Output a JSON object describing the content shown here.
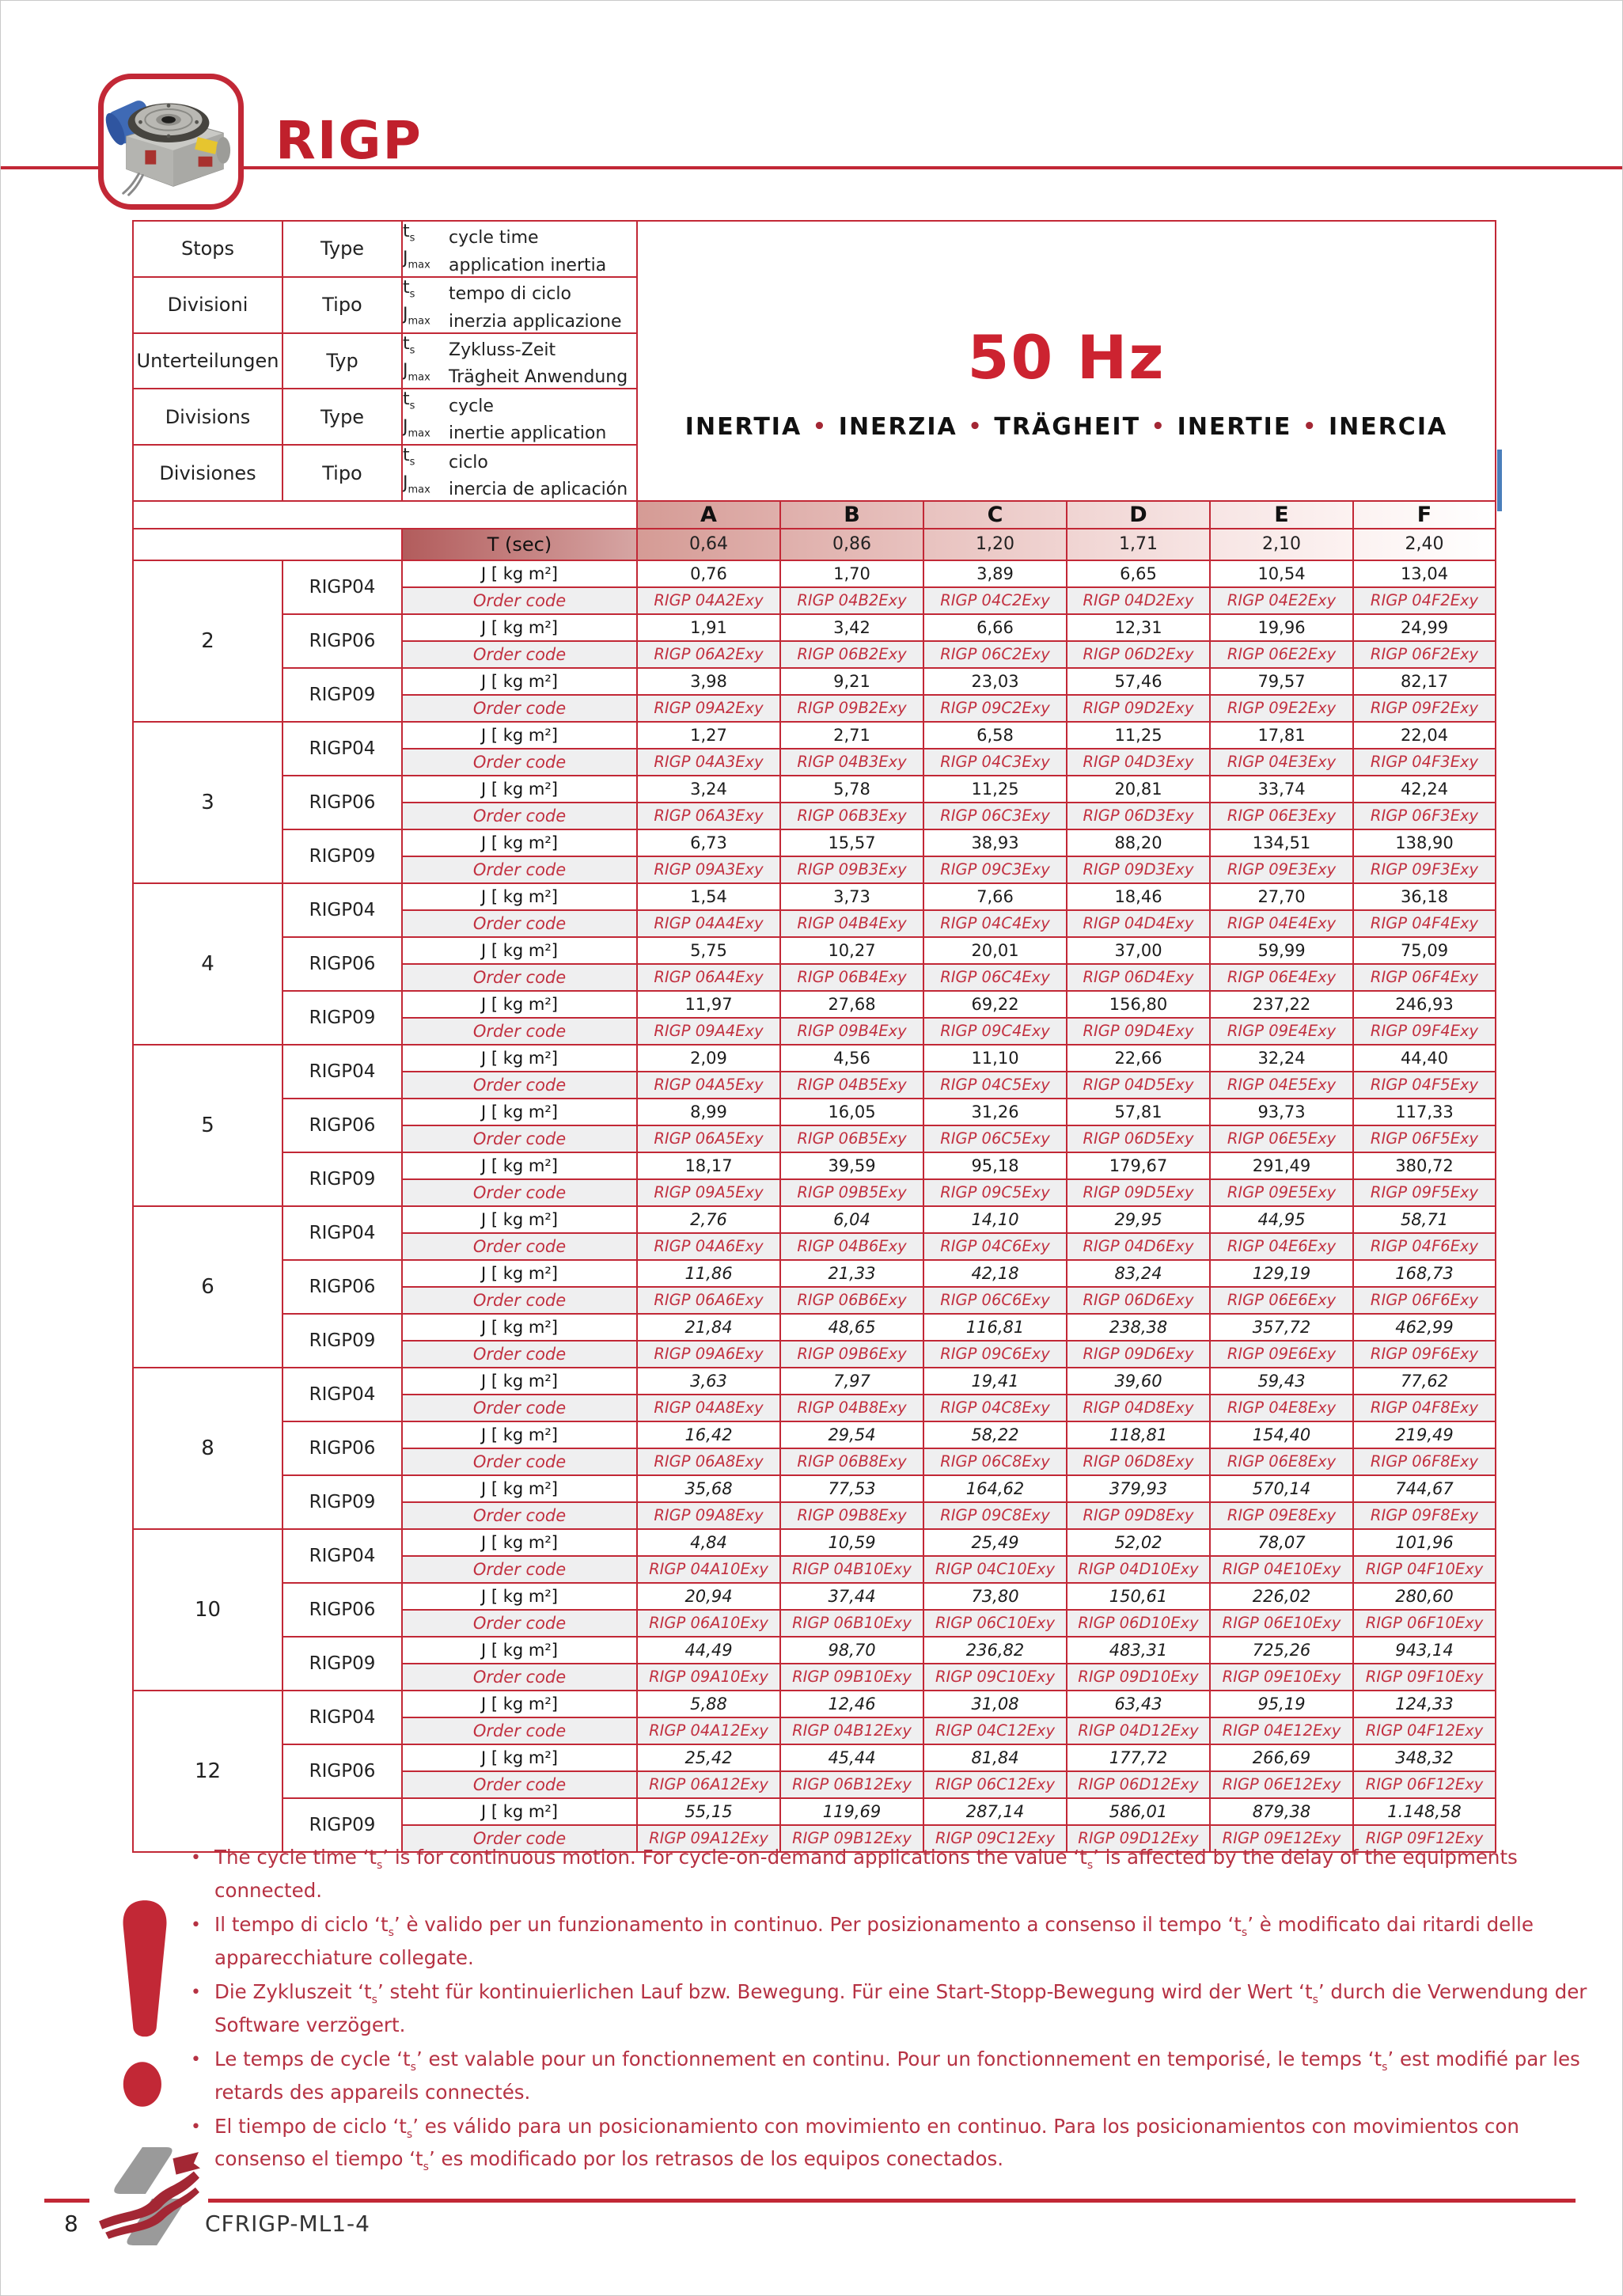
{
  "page": {
    "title": "RIGP",
    "page_number": "8",
    "doc_code": "CFRIGP-ML1-4"
  },
  "colors": {
    "accent_red": "#c22836",
    "title_red": "#c0202c",
    "hz_red": "#cc2330",
    "note_red": "#b63243",
    "order_code_red": "#c23040",
    "blue_edge": "#4a7ebb",
    "order_row_bg": "#efeff0",
    "header_gradient_start": "#d59b95",
    "t_label_gradient_start": "#b25c5c"
  },
  "header_table": {
    "rows": [
      {
        "col1": "Stops",
        "col2": "Type",
        "lines": [
          {
            "sym": "t",
            "sub": "s",
            "text": "cycle time"
          },
          {
            "sym": "J",
            "sub": "max",
            "text": "application inertia"
          }
        ]
      },
      {
        "col1": "Divisioni",
        "col2": "Tipo",
        "lines": [
          {
            "sym": "t",
            "sub": "s",
            "text": "tempo di ciclo"
          },
          {
            "sym": "J",
            "sub": "max",
            "text": "inerzia applicazione"
          }
        ]
      },
      {
        "col1": "Unterteilungen",
        "col2": "Typ",
        "lines": [
          {
            "sym": "t",
            "sub": "s",
            "text": "Zykluss-Zeit"
          },
          {
            "sym": "J",
            "sub": "max",
            "text": "Trägheit Anwendung"
          }
        ]
      },
      {
        "col1": "Divisions",
        "col2": "Type",
        "lines": [
          {
            "sym": "t",
            "sub": "s",
            "text": "cycle"
          },
          {
            "sym": "J",
            "sub": "max",
            "text": "inertie application"
          }
        ]
      },
      {
        "col1": "Divisiones",
        "col2": "Tipo",
        "lines": [
          {
            "sym": "t",
            "sub": "s",
            "text": "ciclo"
          },
          {
            "sym": "J",
            "sub": "max",
            "text": "inercia de aplicación"
          }
        ]
      }
    ]
  },
  "hz_block": {
    "title": "50 Hz",
    "words": [
      "INERTIA",
      "INERZIA",
      "TRÄGHEIT",
      "INERTIE",
      "INERCIA"
    ],
    "separator": "•"
  },
  "columns": [
    "A",
    "B",
    "C",
    "D",
    "E",
    "F"
  ],
  "t_row": {
    "label": "T (sec)",
    "values": [
      "0,64",
      "0,86",
      "1,20",
      "1,71",
      "2,10",
      "2,40"
    ]
  },
  "row_labels": {
    "j": "J [ kg m²]",
    "order": "Order code"
  },
  "groups": [
    {
      "stops": "2",
      "italic": false,
      "types": [
        {
          "name": "RIGP04",
          "j": [
            "0,76",
            "1,70",
            "3,89",
            "6,65",
            "10,54",
            "13,04"
          ],
          "codes": [
            "RIGP 04A2Exy",
            "RIGP 04B2Exy",
            "RIGP 04C2Exy",
            "RIGP 04D2Exy",
            "RIGP 04E2Exy",
            "RIGP 04F2Exy"
          ]
        },
        {
          "name": "RIGP06",
          "j": [
            "1,91",
            "3,42",
            "6,66",
            "12,31",
            "19,96",
            "24,99"
          ],
          "codes": [
            "RIGP 06A2Exy",
            "RIGP 06B2Exy",
            "RIGP 06C2Exy",
            "RIGP 06D2Exy",
            "RIGP 06E2Exy",
            "RIGP 06F2Exy"
          ]
        },
        {
          "name": "RIGP09",
          "j": [
            "3,98",
            "9,21",
            "23,03",
            "57,46",
            "79,57",
            "82,17"
          ],
          "codes": [
            "RIGP 09A2Exy",
            "RIGP 09B2Exy",
            "RIGP 09C2Exy",
            "RIGP 09D2Exy",
            "RIGP 09E2Exy",
            "RIGP 09F2Exy"
          ]
        }
      ]
    },
    {
      "stops": "3",
      "italic": false,
      "types": [
        {
          "name": "RIGP04",
          "j": [
            "1,27",
            "2,71",
            "6,58",
            "11,25",
            "17,81",
            "22,04"
          ],
          "codes": [
            "RIGP 04A3Exy",
            "RIGP 04B3Exy",
            "RIGP 04C3Exy",
            "RIGP 04D3Exy",
            "RIGP 04E3Exy",
            "RIGP 04F3Exy"
          ]
        },
        {
          "name": "RIGP06",
          "j": [
            "3,24",
            "5,78",
            "11,25",
            "20,81",
            "33,74",
            "42,24"
          ],
          "codes": [
            "RIGP 06A3Exy",
            "RIGP 06B3Exy",
            "RIGP 06C3Exy",
            "RIGP 06D3Exy",
            "RIGP 06E3Exy",
            "RIGP 06F3Exy"
          ]
        },
        {
          "name": "RIGP09",
          "j": [
            "6,73",
            "15,57",
            "38,93",
            "88,20",
            "134,51",
            "138,90"
          ],
          "codes": [
            "RIGP 09A3Exy",
            "RIGP 09B3Exy",
            "RIGP 09C3Exy",
            "RIGP 09D3Exy",
            "RIGP 09E3Exy",
            "RIGP 09F3Exy"
          ]
        }
      ]
    },
    {
      "stops": "4",
      "italic": false,
      "types": [
        {
          "name": "RIGP04",
          "j": [
            "1,54",
            "3,73",
            "7,66",
            "18,46",
            "27,70",
            "36,18"
          ],
          "codes": [
            "RIGP 04A4Exy",
            "RIGP 04B4Exy",
            "RIGP 04C4Exy",
            "RIGP 04D4Exy",
            "RIGP 04E4Exy",
            "RIGP 04F4Exy"
          ]
        },
        {
          "name": "RIGP06",
          "j": [
            "5,75",
            "10,27",
            "20,01",
            "37,00",
            "59,99",
            "75,09"
          ],
          "codes": [
            "RIGP 06A4Exy",
            "RIGP 06B4Exy",
            "RIGP 06C4Exy",
            "RIGP 06D4Exy",
            "RIGP 06E4Exy",
            "RIGP 06F4Exy"
          ]
        },
        {
          "name": "RIGP09",
          "j": [
            "11,97",
            "27,68",
            "69,22",
            "156,80",
            "237,22",
            "246,93"
          ],
          "codes": [
            "RIGP 09A4Exy",
            "RIGP 09B4Exy",
            "RIGP 09C4Exy",
            "RIGP 09D4Exy",
            "RIGP 09E4Exy",
            "RIGP 09F4Exy"
          ]
        }
      ]
    },
    {
      "stops": "5",
      "italic": false,
      "types": [
        {
          "name": "RIGP04",
          "j": [
            "2,09",
            "4,56",
            "11,10",
            "22,66",
            "32,24",
            "44,40"
          ],
          "codes": [
            "RIGP 04A5Exy",
            "RIGP 04B5Exy",
            "RIGP 04C5Exy",
            "RIGP 04D5Exy",
            "RIGP 04E5Exy",
            "RIGP 04F5Exy"
          ]
        },
        {
          "name": "RIGP06",
          "j": [
            "8,99",
            "16,05",
            "31,26",
            "57,81",
            "93,73",
            "117,33"
          ],
          "codes": [
            "RIGP 06A5Exy",
            "RIGP 06B5Exy",
            "RIGP 06C5Exy",
            "RIGP 06D5Exy",
            "RIGP 06E5Exy",
            "RIGP 06F5Exy"
          ]
        },
        {
          "name": "RIGP09",
          "j": [
            "18,17",
            "39,59",
            "95,18",
            "179,67",
            "291,49",
            "380,72"
          ],
          "codes": [
            "RIGP 09A5Exy",
            "RIGP 09B5Exy",
            "RIGP 09C5Exy",
            "RIGP 09D5Exy",
            "RIGP 09E5Exy",
            "RIGP 09F5Exy"
          ]
        }
      ]
    },
    {
      "stops": "6",
      "italic": true,
      "types": [
        {
          "name": "RIGP04",
          "j": [
            "2,76",
            "6,04",
            "14,10",
            "29,95",
            "44,95",
            "58,71"
          ],
          "codes": [
            "RIGP 04A6Exy",
            "RIGP 04B6Exy",
            "RIGP 04C6Exy",
            "RIGP 04D6Exy",
            "RIGP 04E6Exy",
            "RIGP 04F6Exy"
          ]
        },
        {
          "name": "RIGP06",
          "j": [
            "11,86",
            "21,33",
            "42,18",
            "83,24",
            "129,19",
            "168,73"
          ],
          "codes": [
            "RIGP 06A6Exy",
            "RIGP 06B6Exy",
            "RIGP 06C6Exy",
            "RIGP 06D6Exy",
            "RIGP 06E6Exy",
            "RIGP 06F6Exy"
          ]
        },
        {
          "name": "RIGP09",
          "j": [
            "21,84",
            "48,65",
            "116,81",
            "238,38",
            "357,72",
            "462,99"
          ],
          "codes": [
            "RIGP 09A6Exy",
            "RIGP 09B6Exy",
            "RIGP 09C6Exy",
            "RIGP 09D6Exy",
            "RIGP 09E6Exy",
            "RIGP 09F6Exy"
          ]
        }
      ]
    },
    {
      "stops": "8",
      "italic": true,
      "types": [
        {
          "name": "RIGP04",
          "j": [
            "3,63",
            "7,97",
            "19,41",
            "39,60",
            "59,43",
            "77,62"
          ],
          "codes": [
            "RIGP 04A8Exy",
            "RIGP 04B8Exy",
            "RIGP 04C8Exy",
            "RIGP 04D8Exy",
            "RIGP 04E8Exy",
            "RIGP 04F8Exy"
          ]
        },
        {
          "name": "RIGP06",
          "j": [
            "16,42",
            "29,54",
            "58,22",
            "118,81",
            "154,40",
            "219,49"
          ],
          "codes": [
            "RIGP 06A8Exy",
            "RIGP 06B8Exy",
            "RIGP 06C8Exy",
            "RIGP 06D8Exy",
            "RIGP 06E8Exy",
            "RIGP 06F8Exy"
          ]
        },
        {
          "name": "RIGP09",
          "j": [
            "35,68",
            "77,53",
            "164,62",
            "379,93",
            "570,14",
            "744,67"
          ],
          "codes": [
            "RIGP 09A8Exy",
            "RIGP 09B8Exy",
            "RIGP 09C8Exy",
            "RIGP 09D8Exy",
            "RIGP 09E8Exy",
            "RIGP 09F8Exy"
          ]
        }
      ]
    },
    {
      "stops": "10",
      "italic": true,
      "types": [
        {
          "name": "RIGP04",
          "j": [
            "4,84",
            "10,59",
            "25,49",
            "52,02",
            "78,07",
            "101,96"
          ],
          "codes": [
            "RIGP 04A10Exy",
            "RIGP 04B10Exy",
            "RIGP 04C10Exy",
            "RIGP 04D10Exy",
            "RIGP 04E10Exy",
            "RIGP 04F10Exy"
          ]
        },
        {
          "name": "RIGP06",
          "j": [
            "20,94",
            "37,44",
            "73,80",
            "150,61",
            "226,02",
            "280,60"
          ],
          "codes": [
            "RIGP 06A10Exy",
            "RIGP 06B10Exy",
            "RIGP 06C10Exy",
            "RIGP 06D10Exy",
            "RIGP 06E10Exy",
            "RIGP 06F10Exy"
          ]
        },
        {
          "name": "RIGP09",
          "j": [
            "44,49",
            "98,70",
            "236,82",
            "483,31",
            "725,26",
            "943,14"
          ],
          "codes": [
            "RIGP 09A10Exy",
            "RIGP 09B10Exy",
            "RIGP 09C10Exy",
            "RIGP 09D10Exy",
            "RIGP 09E10Exy",
            "RIGP 09F10Exy"
          ]
        }
      ]
    },
    {
      "stops": "12",
      "italic": true,
      "types": [
        {
          "name": "RIGP04",
          "j": [
            "5,88",
            "12,46",
            "31,08",
            "63,43",
            "95,19",
            "124,33"
          ],
          "codes": [
            "RIGP 04A12Exy",
            "RIGP 04B12Exy",
            "RIGP 04C12Exy",
            "RIGP 04D12Exy",
            "RIGP 04E12Exy",
            "RIGP 04F12Exy"
          ]
        },
        {
          "name": "RIGP06",
          "j": [
            "25,42",
            "45,44",
            "81,84",
            "177,72",
            "266,69",
            "348,32"
          ],
          "codes": [
            "RIGP 06A12Exy",
            "RIGP 06B12Exy",
            "RIGP 06C12Exy",
            "RIGP 06D12Exy",
            "RIGP 06E12Exy",
            "RIGP 06F12Exy"
          ]
        },
        {
          "name": "RIGP09",
          "j": [
            "55,15",
            "119,69",
            "287,14",
            "586,01",
            "879,38",
            "1.148,58"
          ],
          "codes": [
            "RIGP 09A12Exy",
            "RIGP 09B12Exy",
            "RIGP 09C12Exy",
            "RIGP 09D12Exy",
            "RIGP 09E12Exy",
            "RIGP 09F12Exy"
          ]
        }
      ]
    }
  ],
  "notes": [
    "The cycle time {ts} is for continuous motion. For cycle-on-demand applications the value {ts} is affected by the delay of the equipments connected.",
    "Il tempo di ciclo {ts} è valido per un funzionamento in continuo. Per posizionamento a consenso il tempo {ts} è modificato dai ritardi delle apparecchiature collegate.",
    "Die Zykluszeit {ts} steht für kontinuierlichen Lauf bzw. Bewegung. Für eine Start-Stopp-Bewegung wird der Wert {ts} durch die Verwendung der Software verzögert.",
    "Le temps de cycle {ts} est valable pour un fonctionnement en continu. Pour un fonctionnement en temporisé, le temps {ts} est modifié par les retards des appareils connectés.",
    "El tiempo de ciclo {ts} es válido para un posicionamiento con movimiento en continuo. Para los posicionamientos con movimientos con consenso el tiempo {ts} es modificado por los retrasos de los equipos conectados."
  ]
}
